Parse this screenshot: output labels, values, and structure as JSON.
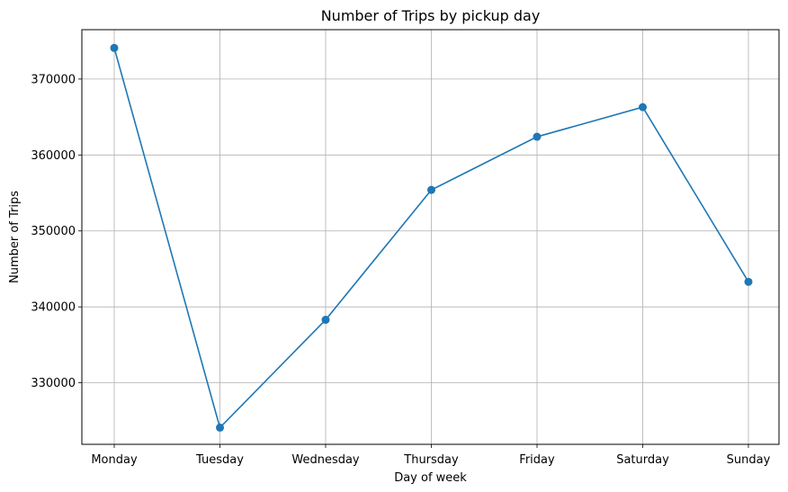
{
  "chart_data": {
    "type": "line",
    "title": "Number of Trips by pickup day",
    "xlabel": "Day of week",
    "ylabel": "Number of Trips",
    "categories": [
      "Monday",
      "Tuesday",
      "Wednesday",
      "Thursday",
      "Friday",
      "Saturday",
      "Sunday"
    ],
    "series": [
      {
        "values": [
          374100,
          324100,
          338300,
          355400,
          362400,
          366300,
          343300
        ],
        "color": "#1f77b4",
        "marker": "circle"
      }
    ],
    "ylim": [
      321900,
      376500
    ],
    "yticks": [
      330000,
      340000,
      350000,
      360000,
      370000
    ],
    "ytick_labels": [
      "330000",
      "340000",
      "350000",
      "360000",
      "370000"
    ],
    "grid": true,
    "grid_color": "#b0b0b0",
    "legend": "none"
  }
}
